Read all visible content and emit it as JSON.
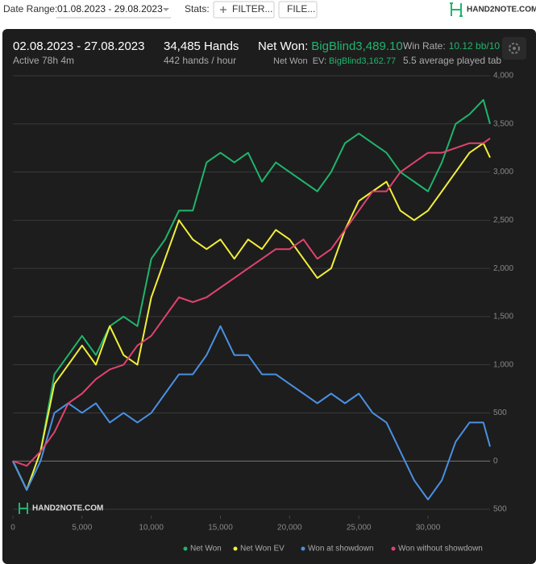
{
  "toolbar": {
    "date_range_label": "Date Range:",
    "date_range": "01.08.2023 - 29.08.2023",
    "stats_label": "Stats:",
    "filter_button": "FILTER...",
    "file_button": "FILE...",
    "logo": "HAND2NOTE.COM"
  },
  "summary": {
    "period": "02.08.2023 - 27.08.2023",
    "active": "Active 78h 4m",
    "hands": "34,485 Hands",
    "hands_per_hour": "442 hands / hour",
    "net_won_label": "Net Won:",
    "net_won": "BigBlind3,489.10",
    "net_won_ev_label": "Net Won  EV:",
    "net_won_ev": "BigBlind3,162.77",
    "win_rate_label": "Win Rate:",
    "win_rate": "10.12 bb/10",
    "tables": "5.5 average played tab"
  },
  "chart_data": {
    "type": "line",
    "watermark": "HAND2NOTE.COM",
    "x": [
      0,
      1000,
      2000,
      3000,
      4000,
      5000,
      6000,
      7000,
      8000,
      9000,
      10000,
      11000,
      12000,
      13000,
      14000,
      15000,
      16000,
      17000,
      18000,
      19000,
      20000,
      21000,
      22000,
      23000,
      24000,
      25000,
      26000,
      27000,
      28000,
      29000,
      30000,
      31000,
      32000,
      33000,
      34000,
      34485
    ],
    "xlim": [
      0,
      34485
    ],
    "xticks": [
      0,
      {
        "value": 5000,
        "label": "5,000"
      },
      {
        "value": 10000,
        "label": "10,000"
      },
      {
        "value": 15000,
        "label": "15,000"
      },
      {
        "value": 20000,
        "label": "20,000"
      },
      {
        "value": 25000,
        "label": "25,000"
      },
      {
        "value": 30000,
        "label": "30,000"
      }
    ],
    "ylim": [
      -500,
      4000
    ],
    "yticks": [
      {
        "value": -500,
        "label": "500"
      },
      0,
      500,
      {
        "value": 1000,
        "label": "1,000"
      },
      {
        "value": 1500,
        "label": "1,500"
      },
      {
        "value": 2000,
        "label": "2,000"
      },
      {
        "value": 2500,
        "label": "2,500"
      },
      {
        "value": 3000,
        "label": "3,000"
      },
      {
        "value": 3500,
        "label": "3,500"
      },
      {
        "value": 4000,
        "label": "4,000"
      }
    ],
    "grid": true,
    "series": [
      {
        "name": "Net Won",
        "color": "#1fb56c",
        "values": [
          0,
          -300,
          100,
          900,
          1100,
          1300,
          1100,
          1400,
          1500,
          1400,
          2100,
          2300,
          2600,
          2600,
          3100,
          3200,
          3100,
          3200,
          2900,
          3100,
          3000,
          2900,
          2800,
          3000,
          3300,
          3400,
          3300,
          3200,
          3000,
          2900,
          2800,
          3100,
          3500,
          3600,
          3750,
          3500
        ]
      },
      {
        "name": "Net Won  EV",
        "color": "#f2ef3a",
        "values": [
          0,
          -300,
          100,
          800,
          1000,
          1200,
          1000,
          1400,
          1100,
          1000,
          1700,
          2100,
          2500,
          2300,
          2200,
          2300,
          2100,
          2300,
          2200,
          2400,
          2300,
          2100,
          1900,
          2000,
          2400,
          2700,
          2800,
          2900,
          2600,
          2500,
          2600,
          2800,
          3000,
          3200,
          3300,
          3150
        ]
      },
      {
        "name": "Won at showdown",
        "color": "#4a90e2",
        "values": [
          0,
          -300,
          0,
          500,
          600,
          500,
          600,
          400,
          500,
          400,
          500,
          700,
          900,
          900,
          1100,
          1400,
          1100,
          1100,
          900,
          900,
          800,
          700,
          600,
          700,
          600,
          700,
          500,
          400,
          100,
          -200,
          -400,
          -200,
          200,
          400,
          400,
          150
        ]
      },
      {
        "name": "Won without showdown",
        "color": "#e0436e",
        "values": [
          0,
          -50,
          100,
          300,
          600,
          700,
          850,
          950,
          1000,
          1200,
          1300,
          1500,
          1700,
          1650,
          1700,
          1800,
          1900,
          2000,
          2100,
          2200,
          2200,
          2300,
          2100,
          2200,
          2400,
          2600,
          2800,
          2800,
          3000,
          3100,
          3200,
          3200,
          3250,
          3300,
          3300,
          3350
        ]
      }
    ]
  }
}
